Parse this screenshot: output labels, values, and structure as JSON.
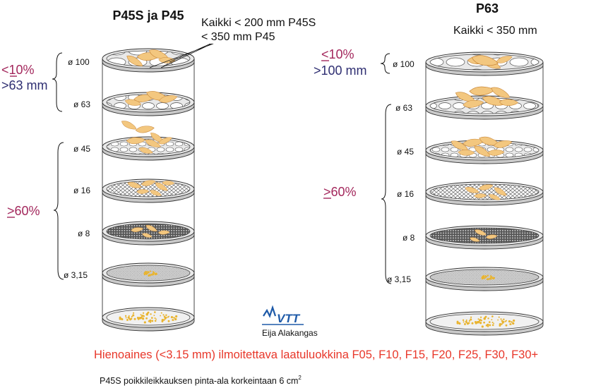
{
  "colors": {
    "purple": "#a3275c",
    "navy": "#2f2f72",
    "red": "#e8372a",
    "chip": "#f3c77f",
    "chip_edge": "#c9883a",
    "fines": "#e9b430",
    "vtt_blue": "#1e5aa8"
  },
  "left": {
    "title": "P45S ja P45",
    "note_line1": "Kaikki < 200 mm P45S",
    "note_line2": "< 350 mm P45",
    "pct_top": "<10%",
    "size_top": ">63 mm",
    "pct_bottom": ">60%",
    "sieves": [
      "ø 100",
      "ø 63",
      "ø 45",
      "ø 16",
      "ø 8",
      "ø 3,15"
    ]
  },
  "right": {
    "title": "P63",
    "note": "Kaikki < 350 mm",
    "pct_top": "<10%",
    "size_top": ">100 mm",
    "pct_bottom": ">60%",
    "sieves": [
      "ø 100",
      "ø 63",
      "ø 45",
      "ø 16",
      "ø 8",
      "ø 3,15"
    ]
  },
  "logo": {
    "text": "VTT",
    "author": "Eija Alakangas"
  },
  "fines_note": "Hienoaines (<3.15 mm) ilmoitettava laatuluokkina F05, F10, F15, F20, F25, F30, F30+",
  "footer": {
    "text": "P45S poikkileikkauksen pinta-ala korkeintaan 6 cm",
    "sup": "2"
  }
}
